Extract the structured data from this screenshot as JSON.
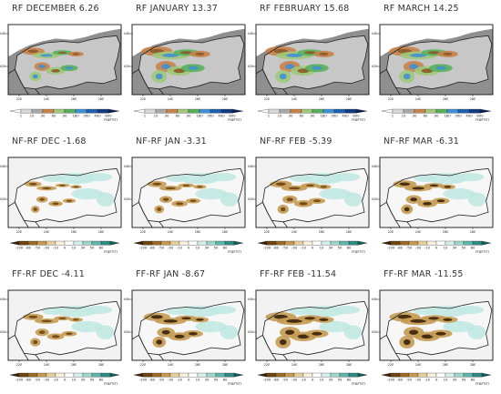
{
  "chart_data": {
    "type": "heatmap",
    "rows": [
      {
        "name": "rf-row",
        "panels": [
          {
            "title": "RF DECEMBER 6.26",
            "value": 6.26
          },
          {
            "title": "RF JANUARY 13.37",
            "value": 13.37
          },
          {
            "title": "RF FEBRUARY 15.68",
            "value": 15.68
          },
          {
            "title": "RF MARCH 14.25",
            "value": 14.25
          }
        ],
        "colorbar": {
          "ticks": [
            "1",
            "10",
            "30",
            "60",
            "90",
            "180",
            "300",
            "400",
            "600"
          ],
          "colors": [
            "#ffffff",
            "#d8d8d8",
            "#a8a8a8",
            "#c8824a",
            "#9fc87a",
            "#58b05c",
            "#3f8fd4",
            "#1d5fb0",
            "#123a80",
            "#0a1f55"
          ],
          "unit": "(kg/m2)"
        }
      },
      {
        "name": "nf-row",
        "panels": [
          {
            "title": "NF-RF DEC -1.68",
            "value": -1.68
          },
          {
            "title": "NF-RF JAN -3.31",
            "value": -3.31
          },
          {
            "title": "NF-RF FEB -5.39",
            "value": -5.39
          },
          {
            "title": "NF-RF MAR -6.31",
            "value": -6.31
          }
        ],
        "colorbar": {
          "ticks": [
            "-100",
            "-80",
            "-50",
            "-30",
            "-10",
            "0",
            "10",
            "30",
            "50",
            "80"
          ],
          "colors": [
            "#3b2208",
            "#6e4410",
            "#9c6a26",
            "#c49a52",
            "#e4cf9c",
            "#f6f0dc",
            "#ffffff",
            "#d6eeea",
            "#9fd6cc",
            "#5fb5aa",
            "#2f8a84",
            "#0f5a56"
          ],
          "unit": "(kg/m2)"
        }
      },
      {
        "name": "ff-row",
        "panels": [
          {
            "title": "FF-RF DEC -4.11",
            "value": -4.11
          },
          {
            "title": "FF-RF JAN -8.67",
            "value": -8.67
          },
          {
            "title": "FF-RF FEB -11.54",
            "value": -11.54
          },
          {
            "title": "FF-RF MAR -11.55",
            "value": -11.55
          }
        ],
        "colorbar": {
          "ticks": [
            "-100",
            "-80",
            "-50",
            "-30",
            "-10",
            "0",
            "10",
            "30",
            "50",
            "80"
          ],
          "colors": [
            "#3b2208",
            "#6e4410",
            "#9c6a26",
            "#c49a52",
            "#e4cf9c",
            "#f6f0dc",
            "#ffffff",
            "#d6eeea",
            "#9fd6cc",
            "#5fb5aa",
            "#2f8a84",
            "#0f5a56"
          ],
          "unit": "(kg/m2)"
        }
      }
    ],
    "map_axes": {
      "x_ticks": [
        "22E",
        "24E",
        "26E",
        "28E"
      ],
      "y_ticks": [
        "44N",
        "42N"
      ]
    },
    "colors": {
      "rf_background": "#8f8f8f",
      "diff_background": "#f2f2f2",
      "diff_wet": "#bfe8e2",
      "border": "#222222"
    }
  }
}
